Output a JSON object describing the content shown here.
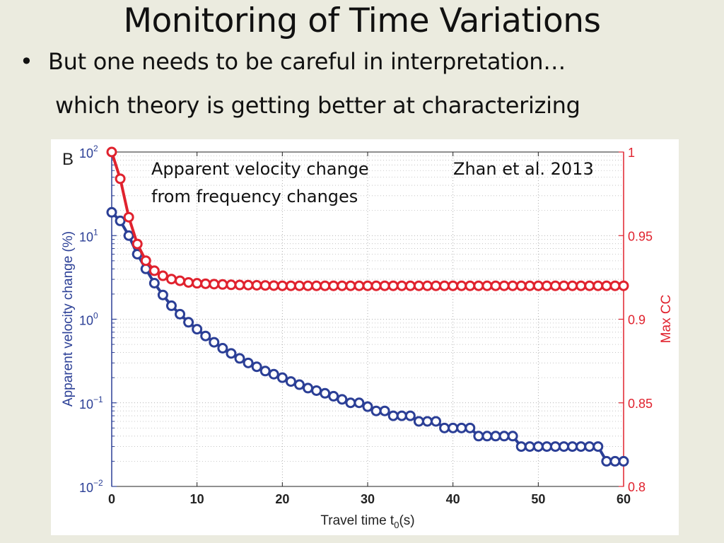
{
  "slide": {
    "title": "Monitoring of Time Variations",
    "bullet_marker": "•",
    "bullet_text": "But one needs to be careful in interpretation…",
    "subline_text": "which theory is getting better at characterizing"
  },
  "chart_data": {
    "type": "scatter",
    "panel_label": "B",
    "annotation_lines": [
      "Apparent velocity change",
      "from frequency changes"
    ],
    "citation": "Zhan et al. 2013",
    "xlabel": "Travel time t",
    "xlabel_sub": "0",
    "xlabel_unit": "(s)",
    "xlim": [
      0,
      60
    ],
    "x_ticks": [
      0,
      10,
      20,
      30,
      40,
      50,
      60
    ],
    "grid": true,
    "y_left": {
      "label": "Apparent velocity change (%)",
      "scale": "log",
      "lim": [
        0.01,
        100
      ],
      "tick_values": [
        0.01,
        0.1,
        1,
        10,
        100
      ],
      "tick_base": "10",
      "tick_exponents": [
        "−2",
        "−1",
        "0",
        "1",
        "2"
      ],
      "color": "#2b3f96"
    },
    "y_right": {
      "label": "Max CC",
      "scale": "linear",
      "lim": [
        0.8,
        1.0
      ],
      "tick_values": [
        0.8,
        0.85,
        0.9,
        0.95,
        1
      ],
      "tick_labels": [
        "0.8",
        "0.85",
        "0.9",
        "0.95",
        "1"
      ],
      "color": "#e0222e"
    },
    "series": [
      {
        "axis": "left",
        "color": "#2b3f96",
        "x": [
          0,
          1,
          2,
          3,
          4,
          5,
          6,
          7,
          8,
          9,
          10,
          11,
          12,
          13,
          14,
          15,
          16,
          17,
          18,
          19,
          20,
          21,
          22,
          23,
          24,
          25,
          26,
          27,
          28,
          29,
          30,
          31,
          32,
          33,
          34,
          35,
          36,
          37,
          38,
          39,
          40,
          41,
          42,
          43,
          44,
          45,
          46,
          47,
          48,
          49,
          50,
          51,
          52,
          53,
          54,
          55,
          56,
          57,
          58,
          59,
          60
        ],
        "values": [
          19,
          15,
          10,
          6,
          4,
          2.7,
          1.95,
          1.45,
          1.15,
          0.92,
          0.76,
          0.63,
          0.53,
          0.45,
          0.39,
          0.34,
          0.3,
          0.27,
          0.24,
          0.22,
          0.2,
          0.18,
          0.165,
          0.15,
          0.14,
          0.13,
          0.12,
          0.11,
          0.1,
          0.1,
          0.09,
          0.08,
          0.08,
          0.07,
          0.07,
          0.07,
          0.06,
          0.06,
          0.06,
          0.05,
          0.05,
          0.05,
          0.05,
          0.04,
          0.04,
          0.04,
          0.04,
          0.04,
          0.03,
          0.03,
          0.03,
          0.03,
          0.03,
          0.03,
          0.03,
          0.03,
          0.03,
          0.03,
          0.02,
          0.02,
          0.02
        ]
      },
      {
        "axis": "right",
        "color": "#e0222e",
        "x": [
          0,
          1,
          2,
          3,
          4,
          5,
          6,
          7,
          8,
          9,
          10,
          11,
          12,
          13,
          14,
          15,
          16,
          17,
          18,
          19,
          20,
          21,
          22,
          23,
          24,
          25,
          26,
          27,
          28,
          29,
          30,
          31,
          32,
          33,
          34,
          35,
          36,
          37,
          38,
          39,
          40,
          41,
          42,
          43,
          44,
          45,
          46,
          47,
          48,
          49,
          50,
          51,
          52,
          53,
          54,
          55,
          56,
          57,
          58,
          59,
          60
        ],
        "values": [
          1.0,
          0.984,
          0.961,
          0.945,
          0.935,
          0.929,
          0.926,
          0.924,
          0.923,
          0.922,
          0.9215,
          0.9212,
          0.921,
          0.9208,
          0.9206,
          0.9205,
          0.9204,
          0.9203,
          0.9202,
          0.9201,
          0.92,
          0.92,
          0.92,
          0.92,
          0.92,
          0.92,
          0.92,
          0.92,
          0.92,
          0.92,
          0.92,
          0.92,
          0.92,
          0.92,
          0.92,
          0.92,
          0.92,
          0.92,
          0.92,
          0.92,
          0.92,
          0.92,
          0.92,
          0.92,
          0.92,
          0.92,
          0.92,
          0.92,
          0.92,
          0.92,
          0.92,
          0.92,
          0.92,
          0.92,
          0.92,
          0.92,
          0.92,
          0.92,
          0.92,
          0.92,
          0.92
        ]
      }
    ]
  }
}
